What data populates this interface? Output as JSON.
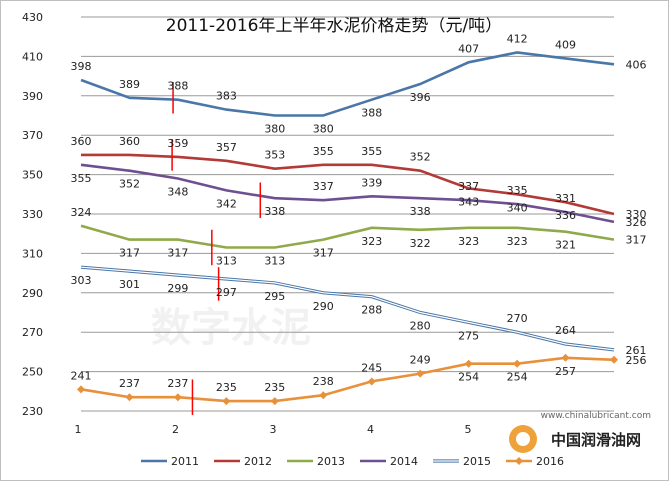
{
  "chart_data": {
    "type": "line",
    "title": "2011-2016年上半年水泥价格走势（元/吨）",
    "xlabel": "",
    "ylabel": "",
    "x": [
      1,
      1.5,
      2,
      2.5,
      3,
      3.5,
      4,
      4.5,
      5,
      5.5,
      6,
      6.5
    ],
    "x_ticks": [
      "1",
      "2",
      "3",
      "4",
      "5"
    ],
    "x_range": [
      1,
      6.5
    ],
    "y_ticks": [
      230,
      250,
      270,
      290,
      310,
      330,
      350,
      370,
      390,
      410,
      430
    ],
    "ylim": [
      230,
      430
    ],
    "grid": "horizontal",
    "legend_position": "bottom",
    "series": [
      {
        "name": "2011",
        "color": "#4a76a8",
        "marker": "none",
        "values": [
          398,
          389,
          388,
          383,
          380,
          380,
          388,
          396,
          407,
          412,
          409,
          406
        ]
      },
      {
        "name": "2012",
        "color": "#b23a37",
        "marker": "none",
        "values": [
          360,
          360,
          359,
          357,
          353,
          355,
          355,
          352,
          343,
          340,
          336,
          330
        ]
      },
      {
        "name": "2013",
        "color": "#8faa4a",
        "marker": "none",
        "values": [
          324,
          317,
          317,
          313,
          313,
          317,
          323,
          322,
          323,
          323,
          321,
          317
        ]
      },
      {
        "name": "2014",
        "color": "#6e5090",
        "marker": "none",
        "values": [
          355,
          352,
          348,
          342,
          338,
          337,
          339,
          338,
          337,
          335,
          331,
          326
        ]
      },
      {
        "name": "2015",
        "color": "#4a76a8",
        "marker": "none",
        "style": "double",
        "values": [
          303,
          301,
          299,
          297,
          295,
          290,
          288,
          280,
          275,
          270,
          264,
          261
        ]
      },
      {
        "name": "2016",
        "color": "#e8913a",
        "marker": "diamond",
        "values": [
          241,
          237,
          237,
          235,
          235,
          238,
          245,
          249,
          254,
          254,
          257,
          256
        ]
      }
    ],
    "annotations": [
      {
        "type": "vertical-marker",
        "color": "#ff0000",
        "x": 1.95,
        "y": [
          381,
          397
        ]
      },
      {
        "type": "vertical-marker",
        "color": "#ff0000",
        "x": 1.94,
        "y": [
          352,
          368
        ]
      },
      {
        "type": "vertical-marker",
        "color": "#ff0000",
        "x": 2.85,
        "y": [
          328,
          346
        ]
      },
      {
        "type": "vertical-marker",
        "color": "#ff0000",
        "x": 2.35,
        "y": [
          304,
          322
        ]
      },
      {
        "type": "vertical-marker",
        "color": "#ff0000",
        "x": 2.42,
        "y": [
          286,
          303
        ]
      },
      {
        "type": "vertical-marker",
        "color": "#ff0000",
        "x": 2.15,
        "y": [
          228,
          246
        ]
      }
    ]
  },
  "watermark": {
    "text": "数字水泥"
  },
  "logo": {
    "url": "www.chinalubricant.com",
    "name": "中国润滑油网"
  }
}
